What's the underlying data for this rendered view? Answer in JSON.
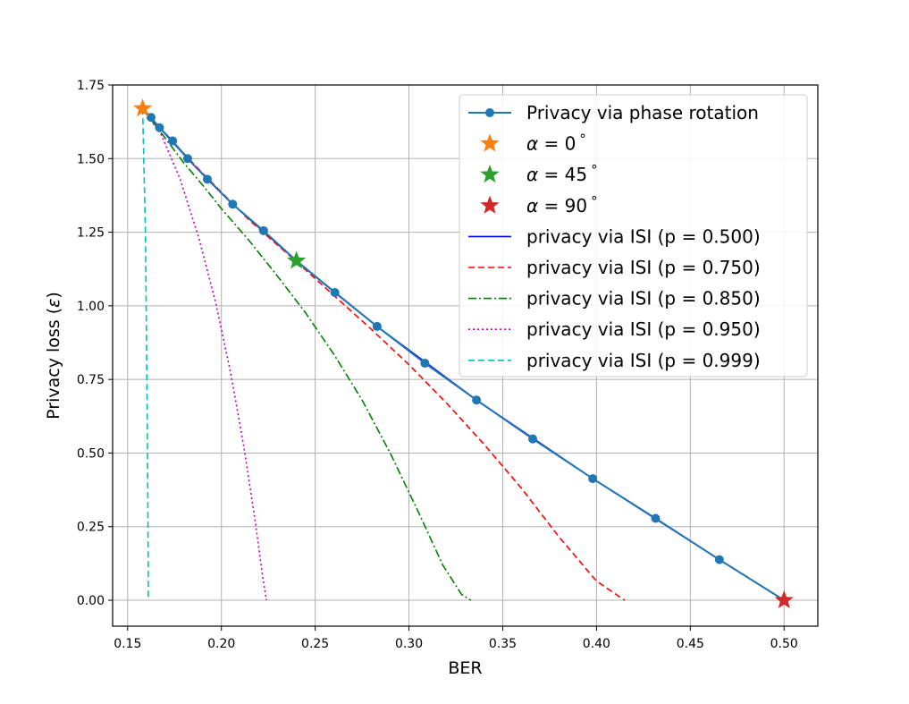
{
  "chart_data": {
    "type": "line",
    "xlabel": "BER",
    "ylabel_prefix": "Privacy loss (",
    "ylabel_symbol": "ε",
    "ylabel_suffix": ")",
    "xlim": [
      0.142,
      0.518
    ],
    "ylim": [
      -0.088,
      1.75
    ],
    "grid": true,
    "legend_position": "top-right",
    "xticks": [
      0.15,
      0.2,
      0.25,
      0.3,
      0.35,
      0.4,
      0.45,
      0.5
    ],
    "xtick_labels": [
      "0.15",
      "0.20",
      "0.25",
      "0.30",
      "0.35",
      "0.40",
      "0.45",
      "0.50"
    ],
    "yticks": [
      0.0,
      0.25,
      0.5,
      0.75,
      1.0,
      1.25,
      1.5,
      1.75
    ],
    "ytick_labels": [
      "0.00",
      "0.25",
      "0.50",
      "0.75",
      "1.00",
      "1.25",
      "1.50",
      "1.75"
    ],
    "series": [
      {
        "name": "Privacy via phase rotation",
        "style": "line-marker",
        "color": "#1f77b4",
        "x": [
          0.158,
          0.1625,
          0.167,
          0.174,
          0.182,
          0.1925,
          0.206,
          0.2225,
          0.24,
          0.2605,
          0.283,
          0.3085,
          0.336,
          0.366,
          0.398,
          0.4315,
          0.4655,
          0.5
        ],
        "y": [
          1.67,
          1.64,
          1.605,
          1.56,
          1.5,
          1.43,
          1.345,
          1.255,
          1.153,
          1.045,
          0.93,
          0.805,
          0.68,
          0.548,
          0.413,
          0.278,
          0.138,
          0.0
        ]
      },
      {
        "name": "α = 0°",
        "label_symbol": "α",
        "label_value": "= 0",
        "label_unit": "°",
        "style": "star",
        "color": "#ff7f0e",
        "x": [
          0.158
        ],
        "y": [
          1.67
        ]
      },
      {
        "name": "α = 45°",
        "label_symbol": "α",
        "label_value": "= 45",
        "label_unit": "°",
        "style": "star",
        "color": "#2ca02c",
        "x": [
          0.24
        ],
        "y": [
          1.153
        ]
      },
      {
        "name": "α = 90°",
        "label_symbol": "α",
        "label_value": "= 90",
        "label_unit": "°",
        "style": "star",
        "color": "#d62728",
        "x": [
          0.5
        ],
        "y": [
          0.0
        ]
      },
      {
        "name": "privacy via ISI (p = 0.500)",
        "style": "solid",
        "color": "#0000ff",
        "x": [
          0.158,
          0.167,
          0.182,
          0.206,
          0.24,
          0.283,
          0.336,
          0.398,
          0.4655,
          0.5
        ],
        "y": [
          1.67,
          1.605,
          1.5,
          1.345,
          1.153,
          0.93,
          0.68,
          0.413,
          0.138,
          0.0
        ]
      },
      {
        "name": "privacy via ISI (p = 0.750)",
        "style": "dashed",
        "color": "#ff0000",
        "x": [
          0.158,
          0.17,
          0.19,
          0.215,
          0.24,
          0.26,
          0.28,
          0.3,
          0.32,
          0.34,
          0.36,
          0.38,
          0.4,
          0.415
        ],
        "y": [
          1.67,
          1.585,
          1.45,
          1.29,
          1.15,
          1.035,
          0.92,
          0.8,
          0.67,
          0.53,
          0.38,
          0.215,
          0.065,
          0.0
        ]
      },
      {
        "name": "privacy via ISI (p = 0.850)",
        "style": "dashdot",
        "color": "#008000",
        "x": [
          0.158,
          0.17,
          0.18,
          0.19,
          0.2,
          0.215,
          0.23,
          0.245,
          0.26,
          0.275,
          0.29,
          0.305,
          0.318,
          0.328,
          0.333
        ],
        "y": [
          1.67,
          1.57,
          1.485,
          1.41,
          1.33,
          1.22,
          1.1,
          0.975,
          0.835,
          0.68,
          0.5,
          0.3,
          0.12,
          0.02,
          0.0
        ]
      },
      {
        "name": "privacy via ISI (p = 0.950)",
        "style": "dotted",
        "color": "#bf00bf",
        "x": [
          0.158,
          0.168,
          0.178,
          0.188,
          0.197,
          0.205,
          0.212,
          0.218,
          0.222,
          0.224
        ],
        "y": [
          1.67,
          1.58,
          1.43,
          1.23,
          1.01,
          0.77,
          0.52,
          0.27,
          0.08,
          0.0
        ]
      },
      {
        "name": "privacy via ISI (p = 0.999)",
        "style": "dashed",
        "color": "#00bfbf",
        "x": [
          0.158,
          0.1595,
          0.1605,
          0.161,
          0.161
        ],
        "y": [
          1.67,
          1.25,
          0.6,
          0.1,
          0.0
        ]
      }
    ]
  }
}
